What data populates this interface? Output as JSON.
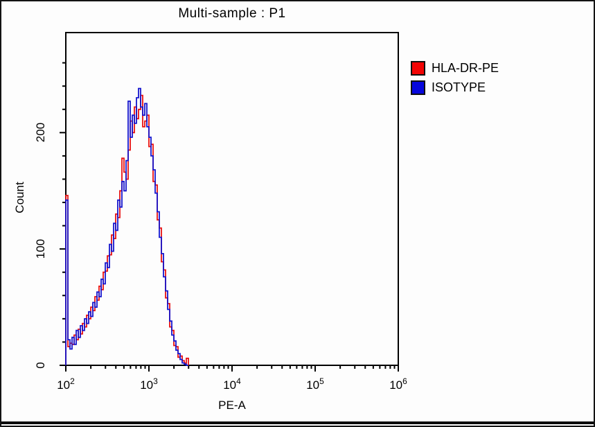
{
  "window": {
    "background": "#fdfdfd",
    "border_color": "#131313"
  },
  "chart": {
    "title": "Multi-sample : P1"
  },
  "chart_data": {
    "type": "line",
    "style": "step-histogram-outline",
    "title": "Multi-sample : P1",
    "xlabel": "PE-A",
    "ylabel": "Count",
    "x_scale": "log10",
    "xlim": [
      100,
      1000000
    ],
    "ylim": [
      0,
      286
    ],
    "grid": false,
    "legend_position": "right-outside-top",
    "x_decade_exponents": [
      2,
      3,
      4,
      5,
      6
    ],
    "x_tick_labels": [
      {
        "base": "10",
        "sup": "2"
      },
      {
        "base": "10",
        "sup": "3"
      },
      {
        "base": "10",
        "sup": "4"
      },
      {
        "base": "10",
        "sup": "5"
      },
      {
        "base": "10",
        "sup": "6"
      }
    ],
    "y_major_ticks": [
      0,
      100,
      200
    ],
    "y_minor_step": 20,
    "bins": {
      "log10_start": 2.0,
      "log10_step": 0.025,
      "count": 59
    },
    "series": [
      {
        "name": "HLA-DR-PE",
        "color": "#e81010",
        "counts": [
          146,
          16,
          19,
          18,
          26,
          22,
          31,
          27,
          36,
          33,
          43,
          40,
          50,
          47,
          59,
          56,
          68,
          65,
          80,
          81,
          94,
          95,
          112,
          109,
          130,
          127,
          150,
          178,
          166,
          160,
          185,
          210,
          200,
          222,
          212,
          220,
          232,
          205,
          210,
          215,
          188,
          190,
          158,
          155,
          125,
          118,
          89,
          82,
          58,
          53,
          33,
          30,
          17,
          16,
          7,
          8,
          4,
          2,
          6
        ]
      },
      {
        "name": "ISOTYPE",
        "color": "#1414cd",
        "counts": [
          142,
          22,
          14,
          24,
          18,
          30,
          24,
          34,
          30,
          40,
          36,
          46,
          42,
          54,
          50,
          63,
          59,
          74,
          70,
          88,
          84,
          104,
          98,
          122,
          116,
          142,
          136,
          158,
          150,
          176,
          227,
          196,
          215,
          208,
          230,
          238,
          222,
          215,
          225,
          205,
          196,
          180,
          168,
          148,
          132,
          110,
          96,
          76,
          64,
          48,
          38,
          26,
          21,
          13,
          10,
          5,
          2,
          1,
          0
        ]
      }
    ],
    "legend": [
      {
        "label": "HLA-DR-PE",
        "color": "#f20404"
      },
      {
        "label": "ISOTYPE",
        "color": "#0707dd"
      }
    ]
  }
}
